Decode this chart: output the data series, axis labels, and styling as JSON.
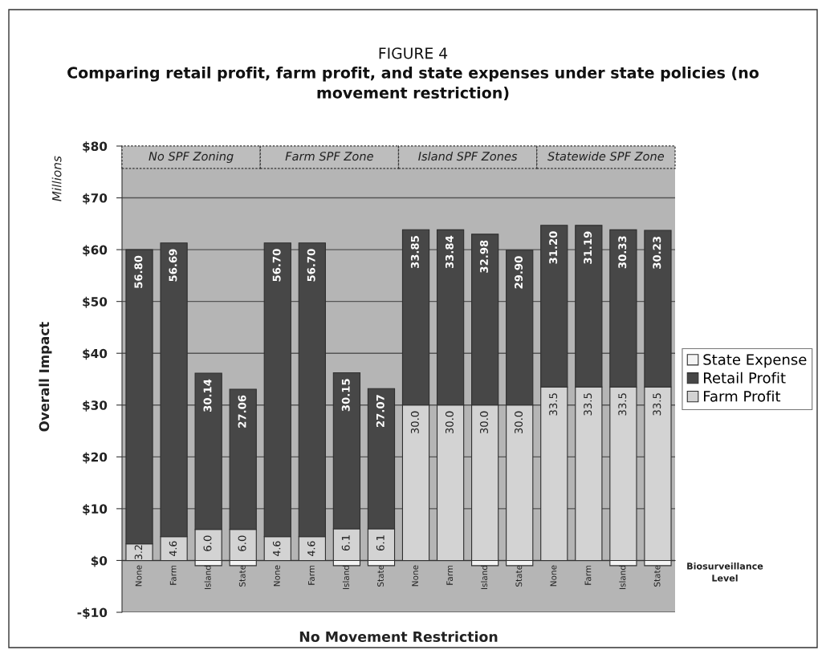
{
  "chart_data": {
    "type": "bar",
    "stacked": true,
    "title": "Comparing retail profit, farm profit, and state expenses under state policies (no movement restriction)",
    "subtitle": "FIGURE 4",
    "xlabel": "No Movement Restriction",
    "ylabel": "Overall Impact",
    "annotations": [
      "Millions",
      "Biosurveillance\nLevel",
      "No SPF Zoning",
      "Farm SPF Zone",
      "Island SPF Zones",
      "Statewide SPF Zone"
    ],
    "categories": [
      "None",
      "Farm",
      "Island",
      "State",
      "None",
      "Farm",
      "Island",
      "State",
      "None",
      "Farm",
      "Island",
      "State",
      "None",
      "Farm",
      "Island",
      "State"
    ],
    "series": [
      {
        "name": "Farm Profit",
        "color": "#d3d3d3",
        "values": [
          3.2,
          4.6,
          6.0,
          6.0,
          4.6,
          4.6,
          6.1,
          6.1,
          30.0,
          30.0,
          30.0,
          30.0,
          33.5,
          33.5,
          33.5,
          33.5
        ],
        "value_labels": [
          "3.2",
          "4.6",
          "6.0",
          "6.0",
          "4.6",
          "4.6",
          "6.1",
          "6.1",
          "30.0",
          "30.0",
          "30.0",
          "30.0",
          "33.5",
          "33.5",
          "33.5",
          "33.5"
        ]
      },
      {
        "name": "Retail Profit",
        "color": "#474747",
        "values": [
          56.8,
          56.69,
          30.14,
          27.06,
          56.7,
          56.7,
          30.15,
          27.07,
          33.85,
          33.84,
          32.98,
          29.9,
          31.2,
          31.19,
          30.33,
          30.23
        ],
        "value_labels": [
          "56.80",
          "56.69",
          "30.14",
          "27.06",
          "56.70",
          "56.70",
          "30.15",
          "27.07",
          "33.85",
          "33.84",
          "32.98",
          "29.90",
          "31.20",
          "31.19",
          "30.33",
          "30.23"
        ]
      },
      {
        "name": "State Expense",
        "color": "#f4f4f4",
        "values": [
          null,
          null,
          -1,
          -1,
          null,
          null,
          -1,
          -1,
          null,
          null,
          -1,
          -1,
          null,
          null,
          -1,
          -1
        ]
      }
    ],
    "ylim": [
      -10,
      80
    ],
    "yticks": [
      {
        "value": -10,
        "label": "-$10"
      },
      {
        "value": 0,
        "label": "$0"
      },
      {
        "value": 10,
        "label": "$10"
      },
      {
        "value": 20,
        "label": "$20"
      },
      {
        "value": 30,
        "label": "$30"
      },
      {
        "value": 40,
        "label": "$40"
      },
      {
        "value": 50,
        "label": "$50"
      },
      {
        "value": 60,
        "label": "$60"
      },
      {
        "value": 70,
        "label": "$70"
      },
      {
        "value": 80,
        "label": "$80"
      }
    ],
    "grid": "y",
    "legend": "right"
  }
}
